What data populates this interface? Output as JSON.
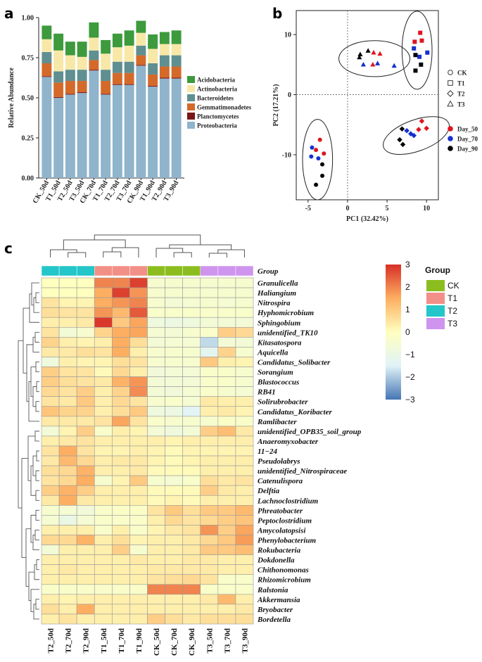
{
  "panel_labels": [
    "a",
    "b",
    "c"
  ],
  "chart_data": [
    {
      "panel": "a",
      "type": "bar",
      "subtype": "stacked",
      "title": "",
      "xlabel": "",
      "ylabel": "Relative Abundance",
      "ylim": [
        0,
        1
      ],
      "yticks": [
        "0.00",
        "0.25",
        "0.50",
        "0.75",
        "1.00"
      ],
      "categories": [
        "CK_50d",
        "T1_50d",
        "T2_50d",
        "T3_50d",
        "CK_70d",
        "T1_70d",
        "T2_70d",
        "T3_70d",
        "CK_90d",
        "T1_90d",
        "T2_90d",
        "T3_90d"
      ],
      "legend_position": "right",
      "series": [
        {
          "name": "Proteobacteria",
          "color": "#8fb4cc",
          "values": [
            0.63,
            0.5,
            0.52,
            0.53,
            0.67,
            0.52,
            0.58,
            0.58,
            0.7,
            0.57,
            0.62,
            0.62
          ]
        },
        {
          "name": "Planctomycetes",
          "color": "#7b1616",
          "values": [
            0.005,
            0.005,
            0.005,
            0.005,
            0.005,
            0.005,
            0.005,
            0.005,
            0.005,
            0.005,
            0.005,
            0.005
          ]
        },
        {
          "name": "Gemmatimonadetes",
          "color": "#d46a2a",
          "values": [
            0.08,
            0.09,
            0.08,
            0.07,
            0.06,
            0.08,
            0.07,
            0.07,
            0.06,
            0.07,
            0.07,
            0.07
          ]
        },
        {
          "name": "Bacteroidetes",
          "color": "#5f8f91",
          "values": [
            0.07,
            0.07,
            0.07,
            0.07,
            0.06,
            0.07,
            0.07,
            0.07,
            0.06,
            0.07,
            0.07,
            0.07
          ]
        },
        {
          "name": "Actinobacteria",
          "color": "#f8e8a8",
          "values": [
            0.08,
            0.13,
            0.09,
            0.08,
            0.08,
            0.1,
            0.09,
            0.1,
            0.08,
            0.09,
            0.07,
            0.07
          ]
        },
        {
          "name": "Acidobacteria",
          "color": "#3d9a3d",
          "values": [
            0.085,
            0.105,
            0.085,
            0.095,
            0.095,
            0.085,
            0.085,
            0.095,
            0.075,
            0.09,
            0.075,
            0.085
          ]
        }
      ],
      "legend_order": [
        "Acidobacteria",
        "Actinobacteria",
        "Bacteroidetes",
        "Gemmatimonadetes",
        "Planctomycetes",
        "Proteobacteria"
      ]
    },
    {
      "panel": "b",
      "type": "scatter",
      "title": "",
      "xlabel": "PC1 (32.42%)",
      "ylabel": "PC2 (17.21%)",
      "xlim": [
        -6.5,
        11.5
      ],
      "ylim": [
        -17.5,
        14
      ],
      "xticks": [
        -5,
        0,
        5,
        10
      ],
      "yticks": [
        -10,
        0,
        10
      ],
      "shape_legend": [
        {
          "label": "CK",
          "shape": "circle"
        },
        {
          "label": "T1",
          "shape": "square"
        },
        {
          "label": "T2",
          "shape": "diamond"
        },
        {
          "label": "T3",
          "shape": "triangle"
        }
      ],
      "color_legend": [
        {
          "label": "Day_50",
          "color": "#e0141e"
        },
        {
          "label": "Day_70",
          "color": "#1530d0"
        },
        {
          "label": "Day_90",
          "color": "#050505"
        }
      ],
      "ellipses": [
        {
          "cx": 3.4,
          "cy": 6.0,
          "rx": 4.5,
          "ry": 3.0,
          "angle": 0
        },
        {
          "cx": 8.8,
          "cy": 7.4,
          "rx": 1.9,
          "ry": 6.5,
          "angle": 0
        },
        {
          "cx": -3.8,
          "cy": -10.8,
          "rx": 1.9,
          "ry": 6.7,
          "angle": 0
        },
        {
          "cx": 8.7,
          "cy": -6.8,
          "rx": 4.4,
          "ry": 2.6,
          "angle": -20
        }
      ],
      "points": [
        {
          "x": 1.5,
          "y": 6.2,
          "shape": "triangle",
          "color": "#050505"
        },
        {
          "x": 1.6,
          "y": 6.7,
          "shape": "triangle",
          "color": "#050505"
        },
        {
          "x": 2.6,
          "y": 7.3,
          "shape": "triangle",
          "color": "#050505"
        },
        {
          "x": 3.2,
          "y": 5.0,
          "shape": "triangle",
          "color": "#e0141e"
        },
        {
          "x": 3.3,
          "y": 7.0,
          "shape": "triangle",
          "color": "#e0141e"
        },
        {
          "x": 4.1,
          "y": 6.8,
          "shape": "triangle",
          "color": "#e0141e"
        },
        {
          "x": 2.0,
          "y": 5.0,
          "shape": "triangle",
          "color": "#1530d0"
        },
        {
          "x": 3.8,
          "y": 5.2,
          "shape": "triangle",
          "color": "#1530d0"
        },
        {
          "x": 5.9,
          "y": 4.8,
          "shape": "triangle",
          "color": "#1530d0"
        },
        {
          "x": 9.2,
          "y": 10.3,
          "shape": "square",
          "color": "#e0141e"
        },
        {
          "x": 8.5,
          "y": 8.8,
          "shape": "square",
          "color": "#e0141e"
        },
        {
          "x": 9.4,
          "y": 9.0,
          "shape": "square",
          "color": "#e0141e"
        },
        {
          "x": 8.4,
          "y": 7.7,
          "shape": "square",
          "color": "#1530d0"
        },
        {
          "x": 9.1,
          "y": 6.3,
          "shape": "square",
          "color": "#1530d0"
        },
        {
          "x": 10.1,
          "y": 7.0,
          "shape": "square",
          "color": "#1530d0"
        },
        {
          "x": 8.6,
          "y": 6.6,
          "shape": "square",
          "color": "#050505"
        },
        {
          "x": 9.3,
          "y": 5.0,
          "shape": "square",
          "color": "#050505"
        },
        {
          "x": 8.6,
          "y": 4.0,
          "shape": "square",
          "color": "#050505"
        },
        {
          "x": -3.5,
          "y": -7.5,
          "shape": "circle",
          "color": "#e0141e"
        },
        {
          "x": -4.0,
          "y": -9.2,
          "shape": "circle",
          "color": "#e0141e"
        },
        {
          "x": -3.0,
          "y": -9.8,
          "shape": "circle",
          "color": "#e0141e"
        },
        {
          "x": -4.5,
          "y": -8.8,
          "shape": "circle",
          "color": "#1530d0"
        },
        {
          "x": -4.6,
          "y": -10.3,
          "shape": "circle",
          "color": "#1530d0"
        },
        {
          "x": -3.7,
          "y": -10.6,
          "shape": "circle",
          "color": "#1530d0"
        },
        {
          "x": -3.2,
          "y": -11.6,
          "shape": "circle",
          "color": "#050505"
        },
        {
          "x": -3.2,
          "y": -13.5,
          "shape": "circle",
          "color": "#050505"
        },
        {
          "x": -4.0,
          "y": -15.0,
          "shape": "circle",
          "color": "#050505"
        },
        {
          "x": 9.4,
          "y": -4.4,
          "shape": "diamond",
          "color": "#e0141e"
        },
        {
          "x": 9.0,
          "y": -5.8,
          "shape": "diamond",
          "color": "#e0141e"
        },
        {
          "x": 10.0,
          "y": -5.6,
          "shape": "diamond",
          "color": "#e0141e"
        },
        {
          "x": 7.5,
          "y": -6.0,
          "shape": "diamond",
          "color": "#1530d0"
        },
        {
          "x": 8.0,
          "y": -6.5,
          "shape": "diamond",
          "color": "#1530d0"
        },
        {
          "x": 8.4,
          "y": -6.8,
          "shape": "diamond",
          "color": "#1530d0"
        },
        {
          "x": 6.9,
          "y": -5.7,
          "shape": "diamond",
          "color": "#050505"
        },
        {
          "x": 6.6,
          "y": -7.5,
          "shape": "diamond",
          "color": "#050505"
        },
        {
          "x": 7.0,
          "y": -8.3,
          "shape": "diamond",
          "color": "#050505"
        }
      ]
    },
    {
      "panel": "c",
      "type": "heatmap",
      "title": "",
      "columns": [
        "T2_50d",
        "T2_70d",
        "T2_90d",
        "T1_50d",
        "T1_70d",
        "T1_90d",
        "CK_50d",
        "CK_70d",
        "CK_90d",
        "T3_50d",
        "T3_70d",
        "T3_90d"
      ],
      "column_groups": [
        "T2",
        "T2",
        "T2",
        "T1",
        "T1",
        "T1",
        "CK",
        "CK",
        "CK",
        "T3",
        "T3",
        "T3"
      ],
      "group_row_label": "Group",
      "rows": [
        "Granulicella",
        "Haliangium",
        "Nitrospira",
        "Hyphomicrobium",
        "Sphingobium",
        "unidentified_TK10",
        "Kitasatospora",
        "Aquicella",
        "Candidatus_Solibacter",
        "Sorangium",
        "Blastococcus",
        "RB41",
        "Solirubrobacter",
        "Candidatus_Koribacter",
        "Ramlibacter",
        "unidentified_OPB35_soil_group",
        "Anaeromyxobacter",
        "11−24",
        "Pseudolabrys",
        "unidentified_Nitrospiraceae",
        "Catenulispora",
        "Delftia",
        "Lachnoclostridium",
        "Phreatobacter",
        "Peptoclostridium",
        "Amycolatopsisi",
        "Phenylobacterium",
        "Rokubacteria",
        "Dokdonella",
        "Chithonomonas",
        "Rhizomicrobium",
        "Ralstonia",
        "Akkermansia",
        "Bryobacter",
        "Bordetella"
      ],
      "values": [
        [
          0.0,
          0.0,
          0.0,
          2.0,
          2.0,
          2.8,
          -0.4,
          -0.4,
          -0.4,
          -0.4,
          -0.4,
          -0.4
        ],
        [
          0.0,
          0.0,
          0.0,
          1.5,
          2.8,
          1.8,
          -0.4,
          -0.4,
          -0.4,
          -0.4,
          -0.4,
          -0.4
        ],
        [
          0.5,
          0.2,
          0.2,
          1.5,
          1.8,
          2.0,
          -0.4,
          -0.6,
          -0.5,
          -0.4,
          -0.5,
          -0.4
        ],
        [
          0.6,
          0.5,
          0.5,
          1.8,
          1.3,
          2.5,
          -0.3,
          -0.3,
          -0.3,
          -0.3,
          -0.3,
          -0.3
        ],
        [
          0.3,
          0.3,
          0.4,
          2.9,
          1.0,
          1.6,
          -0.8,
          -0.9,
          -0.8,
          -0.6,
          -0.6,
          -0.6
        ],
        [
          0.5,
          -0.6,
          -0.4,
          0.8,
          1.5,
          1.6,
          -0.5,
          -0.6,
          -0.4,
          -0.3,
          0.9,
          0.7
        ],
        [
          0.8,
          0.3,
          0.2,
          0.3,
          1.5,
          0.6,
          -0.6,
          -0.5,
          -0.5,
          -1.8,
          -0.6,
          -0.6
        ],
        [
          0.4,
          0.4,
          0.6,
          0.5,
          1.5,
          0.3,
          -0.4,
          -0.4,
          -0.4,
          -1.3,
          0.8,
          -0.4
        ],
        [
          -0.8,
          0.3,
          0.2,
          0.2,
          0.6,
          0.5,
          -0.4,
          -0.4,
          -0.4,
          1.0,
          0.3,
          0.2
        ],
        [
          0.9,
          0.5,
          0.5,
          0.1,
          0.7,
          0.3,
          -0.7,
          -0.6,
          -0.6,
          -0.3,
          -0.3,
          -0.4
        ],
        [
          0.9,
          0.6,
          0.5,
          0.4,
          1.4,
          1.8,
          -0.6,
          -0.6,
          -0.6,
          -0.3,
          -0.3,
          -0.4
        ],
        [
          0.7,
          0.5,
          0.9,
          0.3,
          0.8,
          1.9,
          -0.6,
          -0.7,
          -0.5,
          -0.3,
          -0.4,
          -0.5
        ],
        [
          0.5,
          0.4,
          1.0,
          0.3,
          0.7,
          0.5,
          -0.4,
          -0.3,
          -0.5,
          0.4,
          0.3,
          0.3
        ],
        [
          1.1,
          0.8,
          0.8,
          0.3,
          0.6,
          1.0,
          -0.8,
          -0.9,
          -1.4,
          0.3,
          0.4,
          0.2
        ],
        [
          0.4,
          0.4,
          0.4,
          0.5,
          1.6,
          0.5,
          -0.3,
          -0.4,
          -0.4,
          -0.4,
          -0.2,
          -0.3
        ],
        [
          -0.6,
          0.2,
          0.9,
          -0.3,
          0.3,
          0.2,
          -0.6,
          -0.8,
          -0.6,
          0.9,
          1.2,
          0.4
        ],
        [
          0.3,
          0.4,
          0.5,
          0.3,
          0.3,
          0.3,
          0.3,
          0.2,
          0.3,
          0.3,
          0.3,
          0.3
        ],
        [
          0.5,
          1.5,
          0.5,
          0.2,
          0.2,
          0.3,
          0.2,
          0.1,
          0.2,
          0.2,
          0.2,
          0.2
        ],
        [
          0.4,
          1.3,
          0.7,
          0.3,
          0.4,
          0.4,
          0.2,
          0.1,
          0.2,
          0.3,
          0.3,
          0.3
        ],
        [
          0.6,
          0.7,
          1.4,
          0.3,
          0.3,
          0.4,
          0.1,
          0.1,
          0.1,
          0.3,
          0.3,
          0.3
        ],
        [
          0.5,
          0.7,
          1.5,
          -0.4,
          0.2,
          1.0,
          -0.4,
          -0.5,
          -0.3,
          0.6,
          0.4,
          0.5
        ],
        [
          0.9,
          1.4,
          0.9,
          0.3,
          0.3,
          0.3,
          0.1,
          0.1,
          0.1,
          0.9,
          0.4,
          0.3
        ],
        [
          0.4,
          1.5,
          0.4,
          0.3,
          0.3,
          0.3,
          0.1,
          0.2,
          0.1,
          0.3,
          0.3,
          0.3
        ],
        [
          -0.4,
          -0.5,
          -0.7,
          -0.3,
          -0.2,
          -0.2,
          0.5,
          1.0,
          0.6,
          1.0,
          1.0,
          1.3
        ],
        [
          -0.5,
          -1.0,
          -0.5,
          -0.3,
          -0.3,
          -0.3,
          0.3,
          0.7,
          0.5,
          0.7,
          0.9,
          1.1
        ],
        [
          0.3,
          0.3,
          0.3,
          -0.3,
          0.3,
          -0.3,
          0.2,
          0.4,
          0.5,
          1.8,
          0.9,
          1.6
        ],
        [
          0.7,
          0.7,
          1.4,
          0.3,
          0.6,
          0.2,
          0.3,
          0.3,
          0.4,
          0.7,
          1.0,
          1.7
        ],
        [
          -0.6,
          0.3,
          0.3,
          0.3,
          0.9,
          -0.4,
          0.3,
          0.3,
          0.4,
          1.0,
          1.0,
          1.2
        ],
        [
          0.3,
          0.3,
          0.3,
          0.3,
          0.3,
          0.4,
          0.3,
          0.3,
          0.4,
          0.4,
          0.3,
          0.3
        ],
        [
          0.3,
          0.4,
          0.3,
          0.3,
          0.3,
          0.3,
          0.4,
          0.4,
          0.4,
          0.4,
          0.3,
          0.3
        ],
        [
          0.3,
          0.3,
          0.3,
          0.3,
          0.3,
          0.3,
          0.5,
          0.6,
          0.7,
          0.5,
          -0.3,
          -0.3
        ],
        [
          -0.3,
          -0.3,
          -0.3,
          -0.3,
          -0.3,
          -0.3,
          2.0,
          2.0,
          2.0,
          -0.3,
          -0.3,
          -0.3
        ],
        [
          0.3,
          0.2,
          0.3,
          0.3,
          0.3,
          0.3,
          0.3,
          0.3,
          0.3,
          0.4,
          1.3,
          0.3
        ],
        [
          0.6,
          0.3,
          1.5,
          0.3,
          0.3,
          0.3,
          0.3,
          0.3,
          0.3,
          0.3,
          0.3,
          0.4
        ],
        [
          0.3,
          0.5,
          0.3,
          0.3,
          0.3,
          0.3,
          0.9,
          0.6,
          0.4,
          0.6,
          0.6,
          0.6
        ]
      ],
      "colorbar": {
        "min": -3,
        "max": 3,
        "ticks": [
          "3",
          "2",
          "1",
          "0",
          "−1",
          "−2",
          "−3"
        ],
        "colors": [
          "#4575b4",
          "#e0f3f8",
          "#ffffbf",
          "#fdae61",
          "#d73027"
        ]
      },
      "group_legend": {
        "title": "Group",
        "items": [
          {
            "label": "CK",
            "color": "#8cbd1f"
          },
          {
            "label": "T1",
            "color": "#f28f87"
          },
          {
            "label": "T2",
            "color": "#23c6c9"
          },
          {
            "label": "T3",
            "color": "#cf94ee"
          }
        ]
      }
    }
  ]
}
